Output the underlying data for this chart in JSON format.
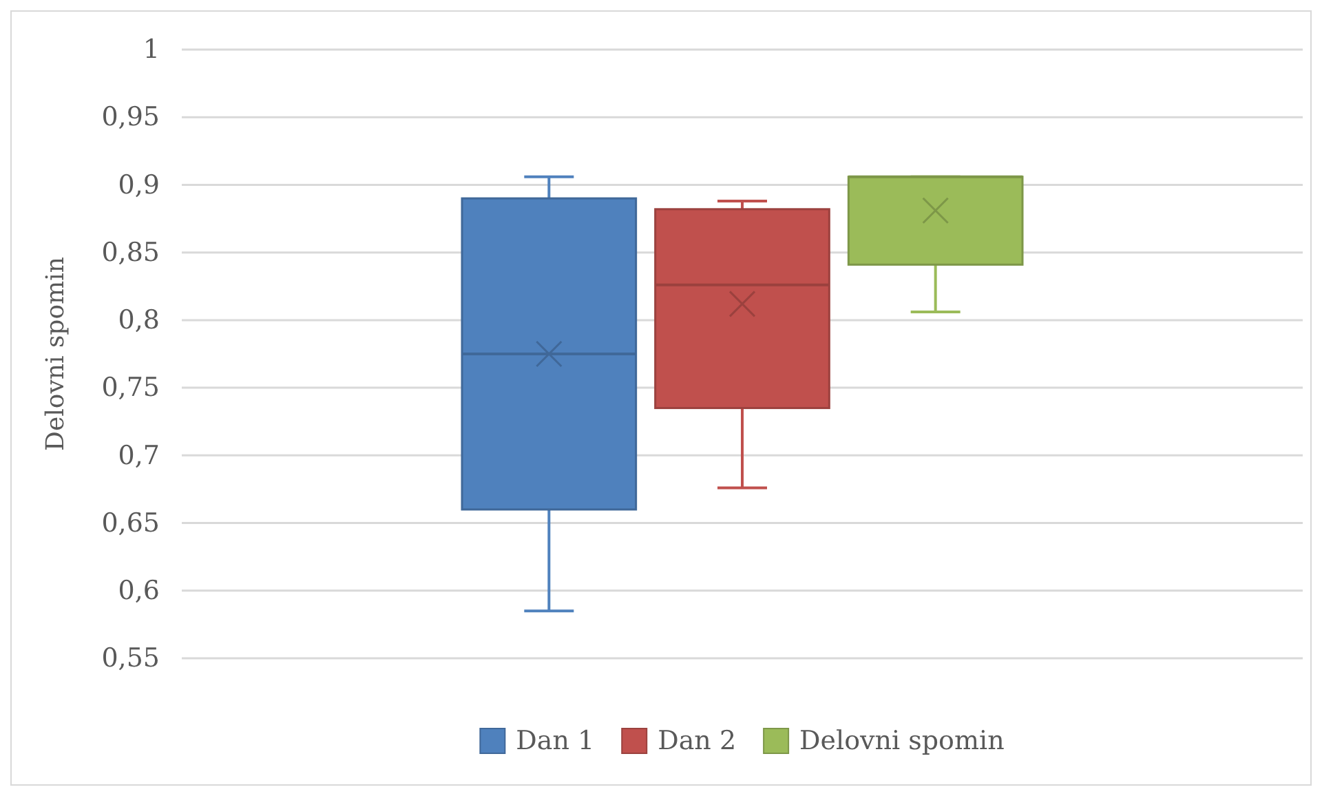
{
  "chart_data": {
    "type": "box",
    "ylabel": "Delovni spomin",
    "categories": [
      null
    ],
    "ylim": [
      0.55,
      1
    ],
    "yticks": [
      {
        "value": 0.55,
        "label": "0,55"
      },
      {
        "value": 0.6,
        "label": "0,6"
      },
      {
        "value": 0.65,
        "label": "0,65"
      },
      {
        "value": 0.7,
        "label": "0,7"
      },
      {
        "value": 0.75,
        "label": "0,75"
      },
      {
        "value": 0.8,
        "label": "0,8"
      },
      {
        "value": 0.85,
        "label": "0,85"
      },
      {
        "value": 0.9,
        "label": "0,9"
      },
      {
        "value": 0.95,
        "label": "0,95"
      },
      {
        "value": 1,
        "label": "1"
      }
    ],
    "grid": "y",
    "legend": "bottom",
    "marker": "cross",
    "series": [
      {
        "name": "Dan 1",
        "color": "#4f81bd",
        "boxes": [
          {
            "low": 0.585,
            "q1": 0.66,
            "median": 0.775,
            "q3": 0.89,
            "high": 0.906,
            "mean": 0.775
          }
        ]
      },
      {
        "name": "Dan 2",
        "color": "#c0504d",
        "boxes": [
          {
            "low": 0.676,
            "q1": 0.735,
            "median": 0.826,
            "q3": 0.882,
            "high": 0.888,
            "mean": 0.812
          }
        ]
      },
      {
        "name": "Delovni spomin",
        "color": "#9bbb59",
        "boxes": [
          {
            "low": 0.806,
            "q1": 0.841,
            "median": 0.906,
            "q3": 0.906,
            "high": 0.906,
            "mean": 0.881
          }
        ]
      }
    ]
  }
}
